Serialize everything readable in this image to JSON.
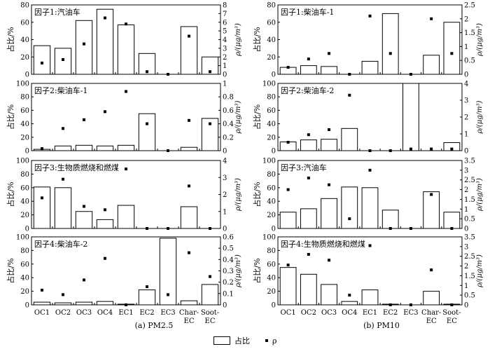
{
  "chart_data": [
    {
      "type": "bar",
      "title": "因子1:汽油车",
      "ylabel_left": "占比/%",
      "ylabel_right": "ρ/(μg/m³)",
      "categories": [
        "OC1",
        "OC2",
        "OC3",
        "OC4",
        "EC1",
        "EC2",
        "EC3",
        "Char-EC",
        "Soot-EC"
      ],
      "ylim_left": [
        0,
        80
      ],
      "yticks_left": [
        0,
        20,
        40,
        60,
        80
      ],
      "ylim_right": [
        0,
        8
      ],
      "yticks_right": [
        0,
        1,
        2,
        3,
        4,
        5,
        6,
        7,
        8
      ],
      "bars": [
        33,
        30,
        62,
        75,
        57,
        24,
        0,
        55,
        20
      ],
      "rho": [
        1.3,
        1.7,
        3.5,
        6.5,
        5.8,
        0.3,
        0,
        4.4,
        0.3
      ]
    },
    {
      "type": "bar",
      "title": "因子2:柴油车-1",
      "ylabel_left": "占比/%",
      "ylabel_right": "ρ/(μg/m³)",
      "categories": [
        "OC1",
        "OC2",
        "OC3",
        "OC4",
        "EC1",
        "EC2",
        "EC3",
        "Char-EC",
        "Soot-EC"
      ],
      "ylim_left": [
        0,
        100
      ],
      "yticks_left": [
        0,
        20,
        40,
        60,
        80,
        100
      ],
      "ylim_right": [
        0,
        1.0
      ],
      "yticks_right": [
        0,
        0.2,
        0.4,
        0.6,
        0.8,
        1.0
      ],
      "bars": [
        2,
        7,
        8,
        7,
        8,
        55,
        0,
        5,
        48
      ],
      "rho": [
        0.03,
        0.33,
        0.46,
        0.58,
        0.88,
        0.4,
        0,
        0.45,
        0.4
      ]
    },
    {
      "type": "bar",
      "title": "因子3:生物质燃烧和燃煤",
      "ylabel_left": "占比/%",
      "ylabel_right": "ρ/(μg/m³)",
      "categories": [
        "OC1",
        "OC2",
        "OC3",
        "OC4",
        "EC1",
        "EC2",
        "EC3",
        "Char-EC",
        "Soot-EC"
      ],
      "ylim_left": [
        0,
        100
      ],
      "yticks_left": [
        0,
        20,
        40,
        60,
        80,
        100
      ],
      "ylim_right": [
        0,
        4
      ],
      "yticks_right": [
        0,
        1,
        2,
        3,
        4
      ],
      "bars": [
        61,
        60,
        25,
        13,
        34,
        0,
        0,
        32,
        0
      ],
      "rho": [
        1.8,
        2.9,
        1.3,
        1.1,
        3.5,
        0,
        0,
        2.5,
        0
      ]
    },
    {
      "type": "bar",
      "title": "因子4:柴油车-2",
      "ylabel_left": "占比/%",
      "ylabel_right": "ρ/(μg/m³)",
      "categories": [
        "OC1",
        "OC2",
        "OC3",
        "OC4",
        "EC1",
        "EC2",
        "EC3",
        "Char-EC",
        "Soot-EC"
      ],
      "ylim_left": [
        0,
        100
      ],
      "yticks_left": [
        0,
        20,
        40,
        60,
        80,
        100
      ],
      "ylim_right": [
        0,
        0.6
      ],
      "yticks_right": [
        0,
        0.1,
        0.2,
        0.3,
        0.4,
        0.5,
        0.6
      ],
      "bars": [
        4,
        3,
        4,
        5,
        1,
        22,
        98,
        6,
        30
      ],
      "rho": [
        0.13,
        0.09,
        0.22,
        0.41,
        0,
        0.16,
        0.09,
        0.46,
        0.25
      ]
    },
    {
      "type": "bar",
      "title": "因子1:柴油车-1",
      "ylabel_left": "占比/%",
      "ylabel_right": "ρ/(μg/m³)",
      "categories": [
        "OC1",
        "OC2",
        "OC3",
        "OC4",
        "EC1",
        "EC2",
        "EC3",
        "Char-EC",
        "Soot-EC"
      ],
      "ylim_left": [
        0,
        80
      ],
      "yticks_left": [
        0,
        20,
        40,
        60,
        80
      ],
      "ylim_right": [
        0,
        2.5
      ],
      "yticks_right": [
        0,
        0.5,
        1.0,
        1.5,
        2.0,
        2.5
      ],
      "bars": [
        8,
        10,
        9,
        0,
        15,
        70,
        0,
        22,
        60
      ],
      "rho": [
        0.25,
        0.55,
        0.75,
        0,
        2.1,
        0.75,
        0,
        2.0,
        0.75
      ]
    },
    {
      "type": "bar",
      "title": "因子2:柴油车-2",
      "ylabel_left": "占比/%",
      "ylabel_right": "ρ/(μg/m³)",
      "categories": [
        "OC1",
        "OC2",
        "OC3",
        "OC4",
        "EC1",
        "EC2",
        "EC3",
        "Char-EC",
        "Soot-EC"
      ],
      "ylim_left": [
        0,
        100
      ],
      "yticks_left": [
        0,
        20,
        40,
        60,
        80,
        100
      ],
      "ylim_right": [
        0,
        4
      ],
      "yticks_right": [
        0,
        1,
        2,
        3,
        4
      ],
      "bars": [
        13,
        16,
        17,
        33,
        0,
        0,
        100,
        0,
        12
      ],
      "rho": [
        0.5,
        0.95,
        1.25,
        3.3,
        0,
        0,
        0.1,
        0.1,
        0.1
      ]
    },
    {
      "type": "bar",
      "title": "因子3:汽油车",
      "ylabel_left": "占比/%",
      "ylabel_right": "ρ/(μg/m³)",
      "categories": [
        "OC1",
        "OC2",
        "OC3",
        "OC4",
        "EC1",
        "EC2",
        "EC3",
        "Char-EC",
        "Soot-EC"
      ],
      "ylim_left": [
        0,
        100
      ],
      "yticks_left": [
        0,
        20,
        40,
        60,
        80,
        100
      ],
      "ylim_right": [
        0,
        3.5
      ],
      "yticks_right": [
        0,
        0.5,
        1.0,
        1.5,
        2.0,
        2.5,
        3.0,
        3.5
      ],
      "bars": [
        24,
        29,
        44,
        61,
        60,
        27,
        0,
        54,
        24
      ],
      "rho": [
        2.0,
        2.6,
        2.25,
        0.5,
        3.0,
        0,
        0,
        1.75,
        0
      ]
    },
    {
      "type": "bar",
      "title": "因子4:生物质燃烧和燃煤",
      "ylabel_left": "占比/%",
      "ylabel_right": "ρ/(μg/m³)",
      "categories": [
        "OC1",
        "OC2",
        "OC3",
        "OC4",
        "EC1",
        "EC2",
        "EC3",
        "Char-EC",
        "Soot-EC"
      ],
      "ylim_left": [
        0,
        100
      ],
      "yticks_left": [
        0,
        20,
        40,
        60,
        80,
        100
      ],
      "ylim_right": [
        0,
        3.5
      ],
      "yticks_right": [
        0,
        0.5,
        1.0,
        1.5,
        2.0,
        2.5,
        3.0,
        3.5
      ],
      "bars": [
        55,
        45,
        30,
        5,
        22,
        1,
        0,
        20,
        1
      ],
      "rho": [
        2.05,
        2.6,
        2.3,
        0.5,
        3.05,
        0,
        0,
        1.8,
        0
      ]
    }
  ],
  "captions": {
    "left": "(a) PM2.5",
    "right": "(b) PM10"
  },
  "legend": {
    "bar_label": "占比",
    "dot_label": "ρ"
  }
}
